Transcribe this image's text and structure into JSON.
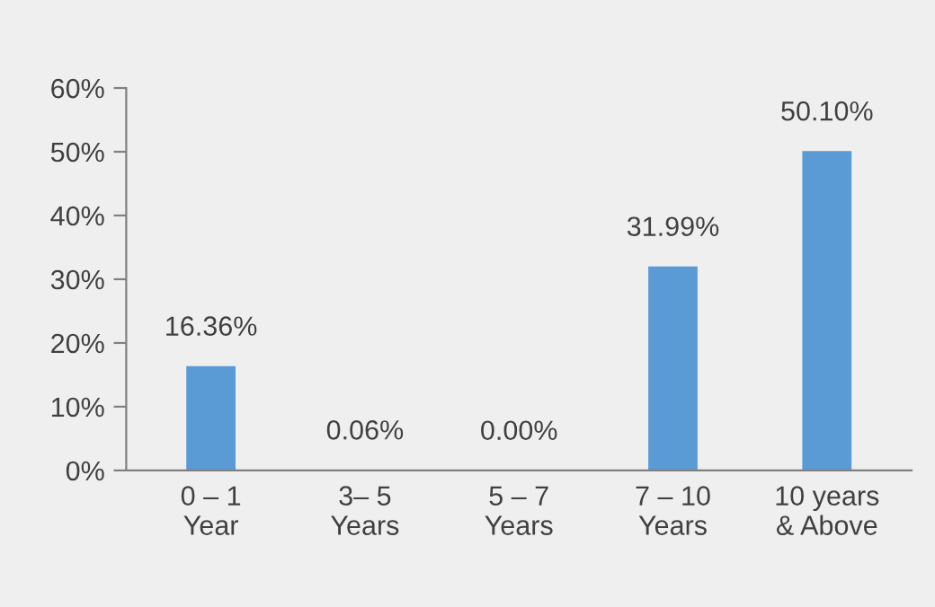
{
  "chart_data": {
    "type": "bar",
    "categories": [
      "0 – 1\nYear",
      "3– 5\nYears",
      "5 – 7\nYears",
      "7 – 10\nYears",
      "10 years\n& Above"
    ],
    "values": [
      16.36,
      0.06,
      0.0,
      31.99,
      50.1
    ],
    "value_labels": [
      "16.36%",
      "0.06%",
      "0.00%",
      "31.99%",
      "50.10%"
    ],
    "color": "#5b9bd5",
    "ylim": [
      0,
      60
    ],
    "yticks": [
      {
        "value": 0,
        "label": "0%"
      },
      {
        "value": 10,
        "label": "10%"
      },
      {
        "value": 20,
        "label": "20%"
      },
      {
        "value": 30,
        "label": "30%"
      },
      {
        "value": 40,
        "label": "40%"
      },
      {
        "value": 50,
        "label": "50%"
      },
      {
        "value": 60,
        "label": "60%"
      }
    ],
    "grid": false
  }
}
